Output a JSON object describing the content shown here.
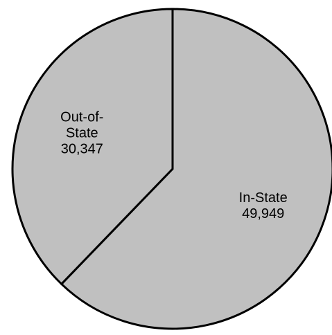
{
  "chart_data": {
    "type": "pie",
    "title": "",
    "slices": [
      {
        "label_lines": [
          "In-State"
        ],
        "value_label": "49,949",
        "value": 49949,
        "color": "#c0c0c0"
      },
      {
        "label_lines": [
          "Out-of-",
          "State"
        ],
        "value_label": "30,347",
        "value": 30347,
        "color": "#c0c0c0"
      }
    ],
    "start_position": "top",
    "direction": "clockwise",
    "outline_color": "#000000",
    "legend": "none"
  }
}
